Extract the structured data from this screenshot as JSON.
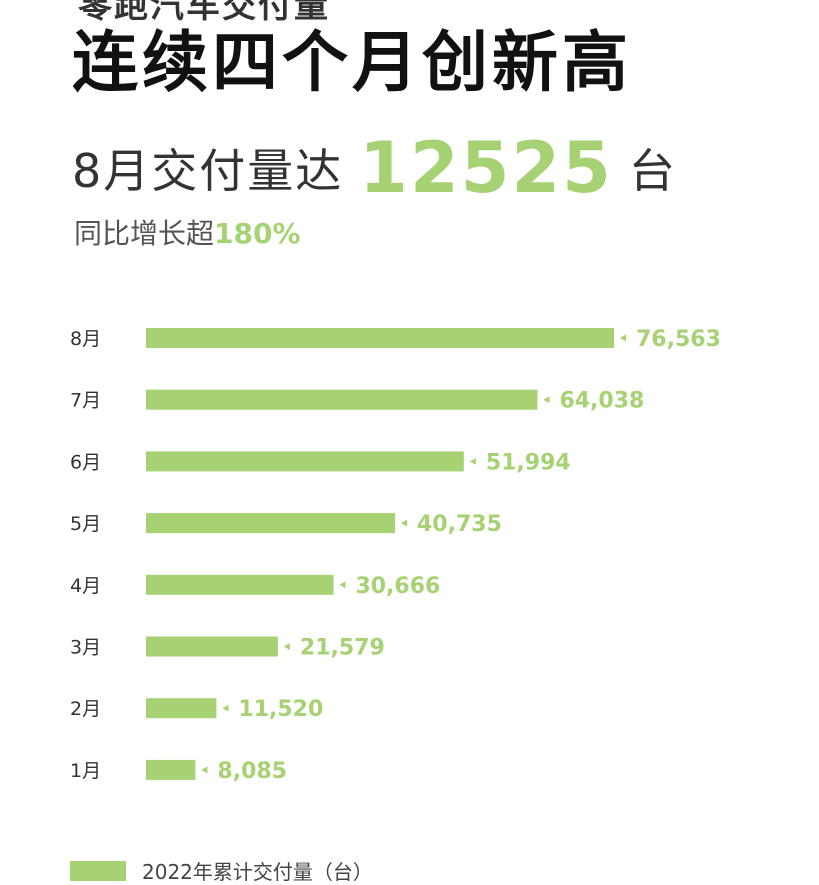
{
  "header": {
    "clipped_title": "零跑汽车交付量",
    "main_title": "连续四个月创新高",
    "delivery_prefix": "8月交付量达",
    "delivery_number": "12525",
    "delivery_unit": "台",
    "growth_prefix": "同比增长超",
    "growth_value": "180%"
  },
  "colors": {
    "accent": "#a6d273",
    "label": "#333333"
  },
  "chart_data": {
    "type": "bar",
    "orientation": "horizontal",
    "categories": [
      "8月",
      "7月",
      "6月",
      "5月",
      "4月",
      "3月",
      "2月",
      "1月"
    ],
    "values": [
      76563,
      64038,
      51994,
      40735,
      30666,
      21579,
      11520,
      8085
    ],
    "value_labels": [
      "76,563",
      "64,038",
      "51,994",
      "40,735",
      "30,666",
      "21,579",
      "11,520",
      "8,085"
    ],
    "series": [
      {
        "name": "2022年累计交付量（台）"
      }
    ],
    "legend": "bottom-left",
    "grid": false
  }
}
